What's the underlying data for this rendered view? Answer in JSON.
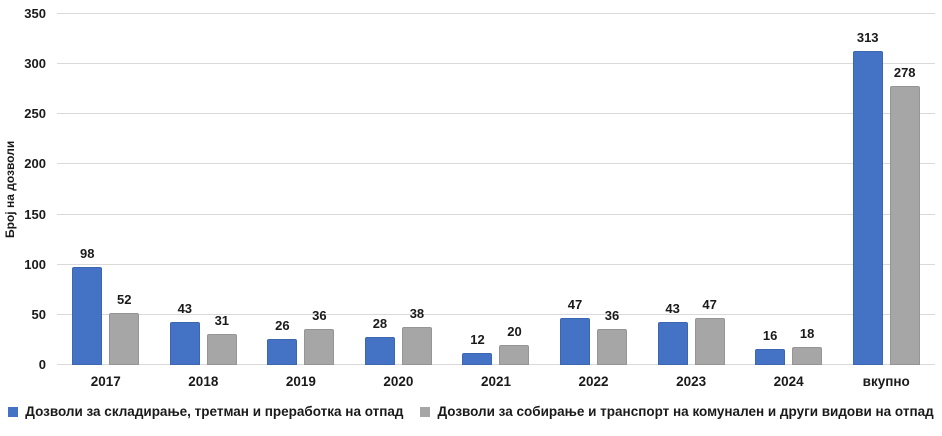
{
  "chart_data": {
    "type": "bar",
    "title": "",
    "xlabel": "",
    "ylabel": "Број на дозволи",
    "categories": [
      "2017",
      "2018",
      "2019",
      "2020",
      "2021",
      "2022",
      "2023",
      "2024",
      "вкупно"
    ],
    "series": [
      {
        "name": "Дозволи за складирање, третман и преработка на отпад",
        "color": "#4472C4",
        "values": [
          98,
          43,
          26,
          28,
          12,
          47,
          43,
          16,
          313
        ]
      },
      {
        "name": "Дозволи за собирање и транспорт на комунален и други видови на отпад",
        "color": "#A6A6A6",
        "values": [
          52,
          31,
          36,
          38,
          20,
          36,
          47,
          18,
          278
        ]
      }
    ],
    "ylim": [
      0,
      350
    ],
    "yticks": [
      0,
      50,
      100,
      150,
      200,
      250,
      300,
      350
    ],
    "grid": true,
    "legend_position": "bottom",
    "data_labels": true,
    "gridline_color": "#D9D9D9"
  }
}
